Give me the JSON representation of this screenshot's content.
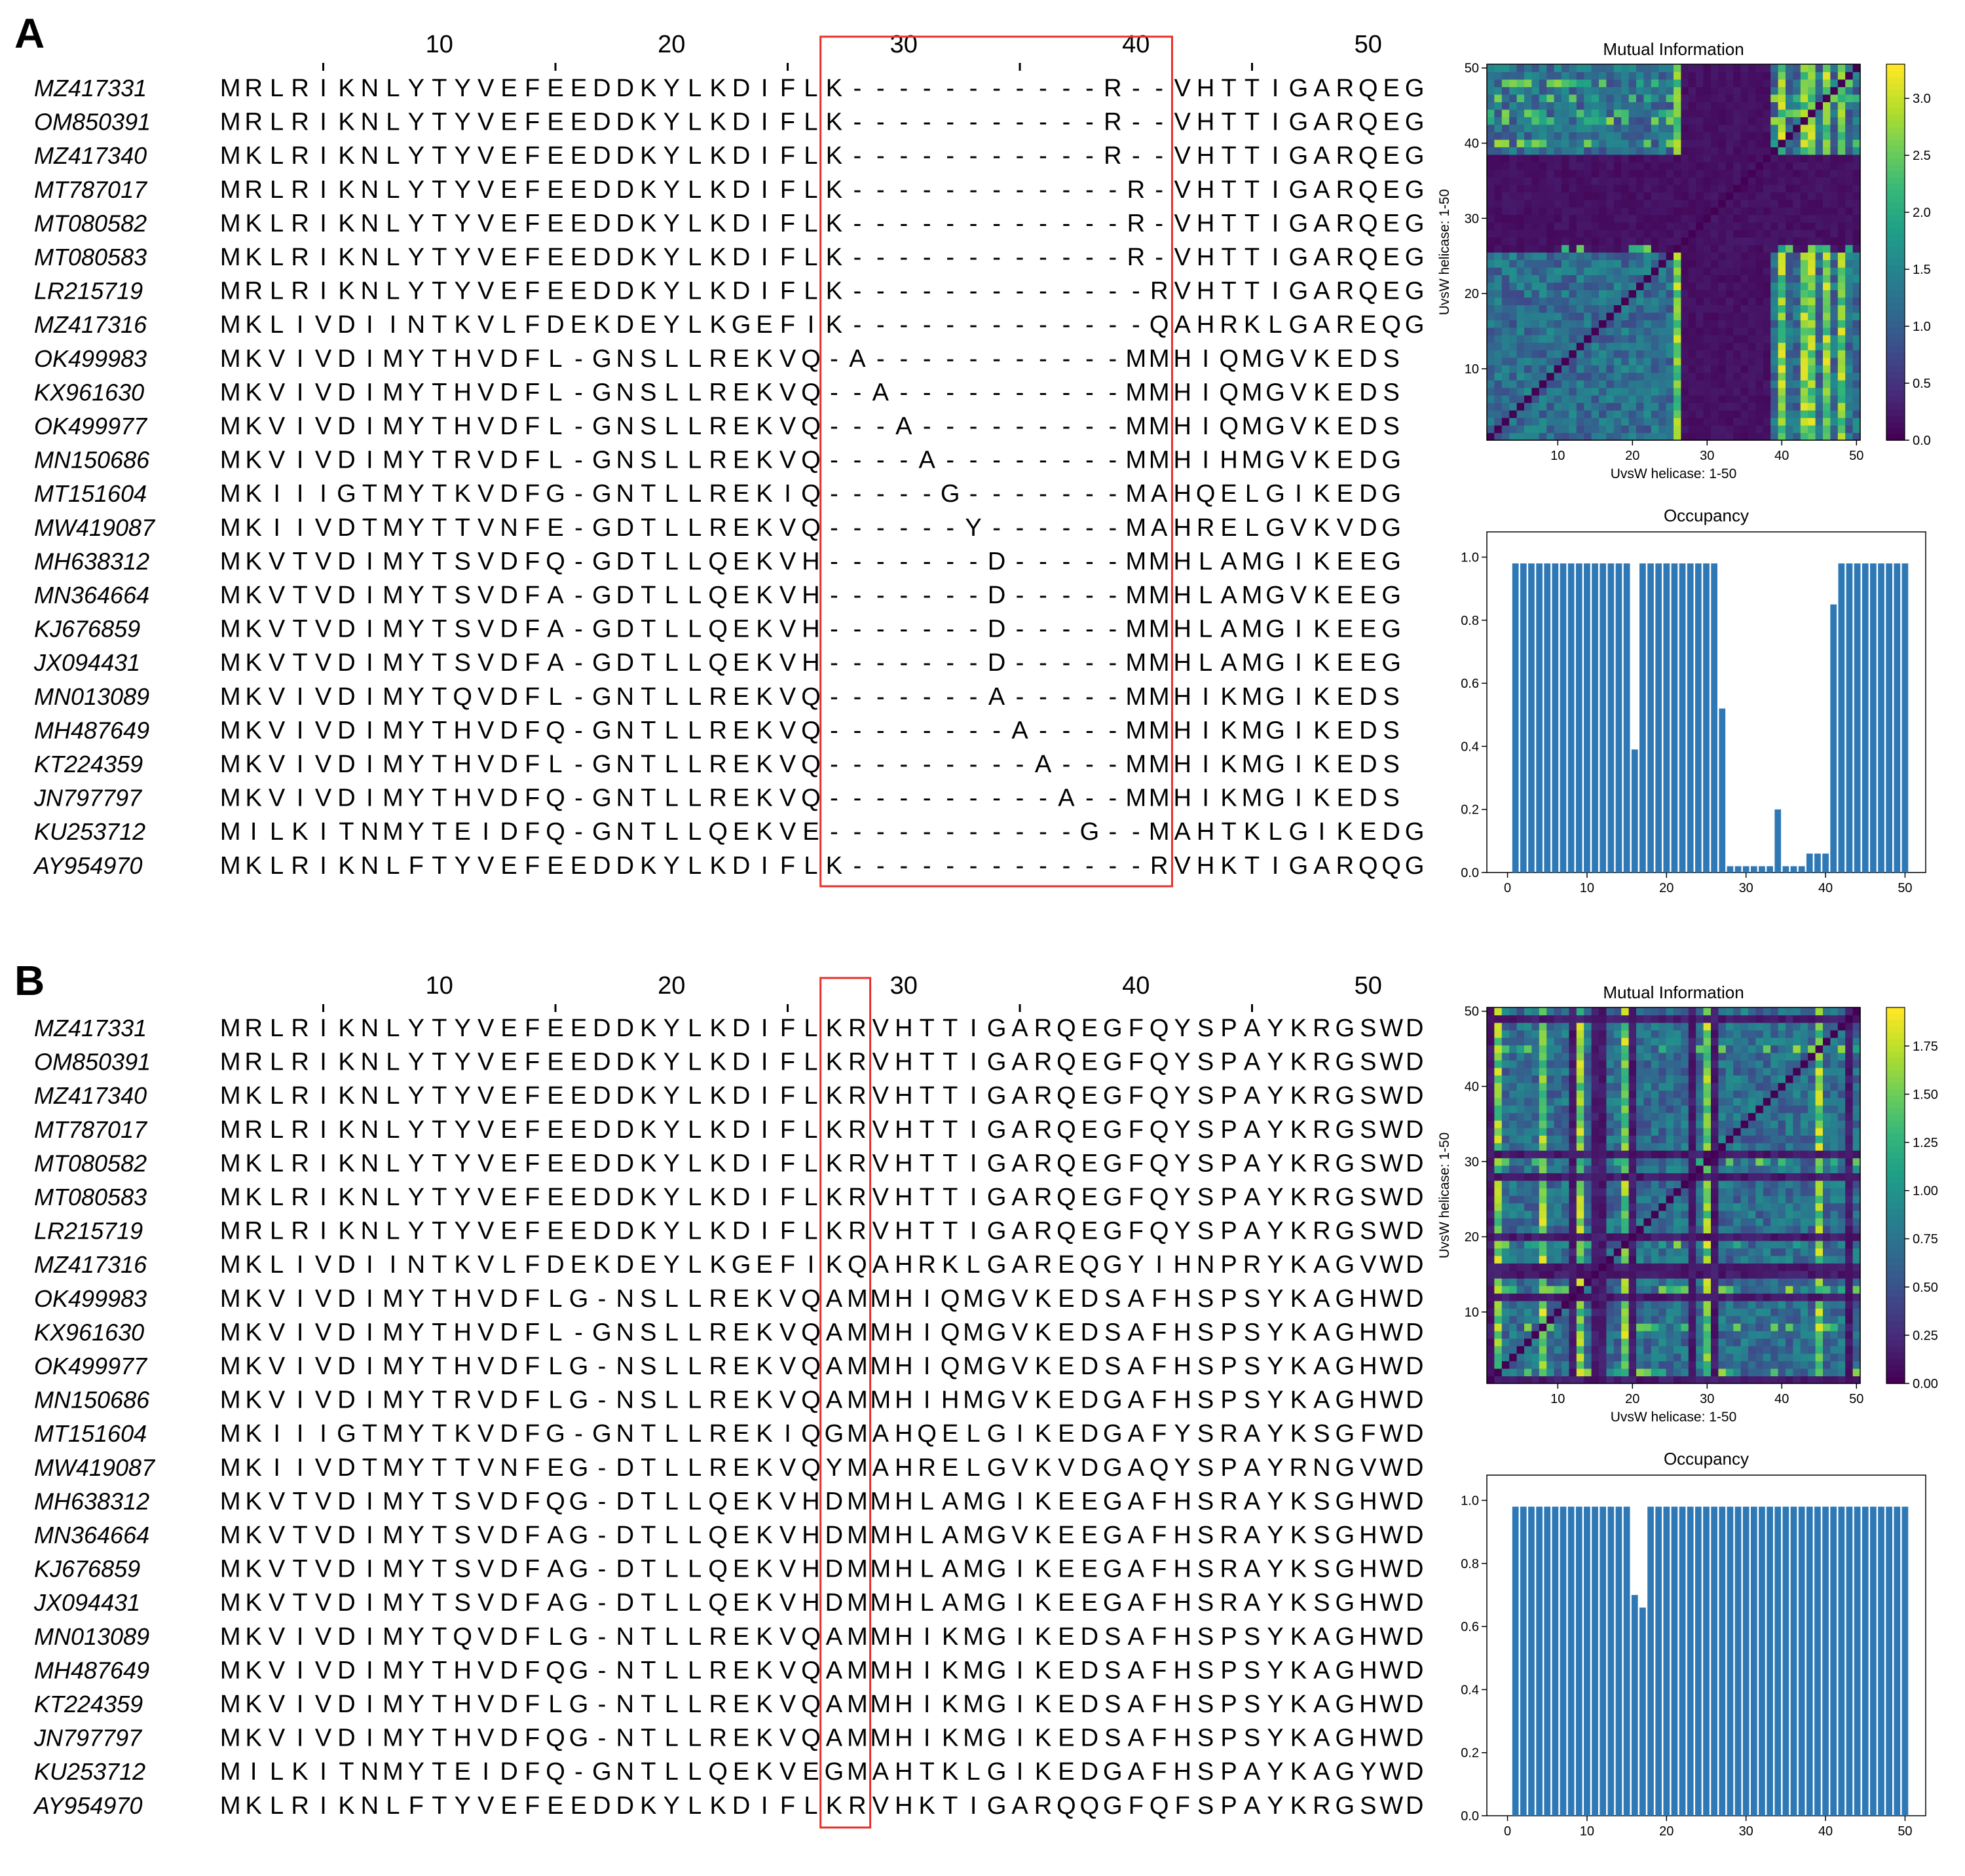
{
  "panels": [
    {
      "letter": "A",
      "alignment": {
        "ruler_labels": [
          "10",
          "20",
          "30",
          "40",
          "50"
        ],
        "ruler_positions": [
          10,
          20,
          30,
          40,
          50
        ],
        "highlight_columns": [
          27,
          41
        ],
        "rows": [
          {
            "name": "MZ417331",
            "seq": "MRLRIKNLYTYVEFEEDDKYLKDIFLK-----------R--VHTTIGARQEG"
          },
          {
            "name": "OM850391",
            "seq": "MRLRIKNLYTYVEFEEDDKYLKDIFLK-----------R--VHTTIGARQEG"
          },
          {
            "name": "MZ417340",
            "seq": "MKLRIKNLYTYVEFEEDDKYLKDIFLK-----------R--VHTTIGARQEG"
          },
          {
            "name": "MT787017",
            "seq": "MRLRIKNLYTYVEFEEDDKYLKDIFLK------------R-VHTTIGARQEG"
          },
          {
            "name": "MT080582",
            "seq": "MKLRIKNLYTYVEFEEDDKYLKDIFLK------------R-VHTTIGARQEG"
          },
          {
            "name": "MT080583",
            "seq": "MKLRIKNLYTYVEFEEDDKYLKDIFLK------------R-VHTTIGARQEG"
          },
          {
            "name": "LR215719",
            "seq": "MRLRIKNLYTYVEFEEDDKYLKDIFLK-------------RVHTTIGARQEG"
          },
          {
            "name": "MZ417316",
            "seq": "MKLIVDIINTKVLFDEKDEYLKGEFIK-------------QAHRKLGAREQG"
          },
          {
            "name": "OK499983",
            "seq": "MKVIVDIMYTHVDFL-GNSLLREKVQ-A-----------MMHIQMGVKEDS"
          },
          {
            "name": "KX961630",
            "seq": "MKVIVDIMYTHVDFL-GNSLLREKVQ--A----------MMHIQMGVKEDS"
          },
          {
            "name": "OK499977",
            "seq": "MKVIVDIMYTHVDFL-GNSLLREKVQ---A---------MMHIQMGVKEDS"
          },
          {
            "name": "MN150686",
            "seq": "MKVIVDIMYTRVDFL-GNSLLREKVQ----A--------MMHIHMGVKEDG"
          },
          {
            "name": "MT151604",
            "seq": "MKIIIGTMYTKVDFG-GNTLLREKIQ-----G-------MAHQELGIKEDG"
          },
          {
            "name": "MW419087",
            "seq": "MKIIVDTMYTTVNFE-GDTLLREKVQ------Y------MAHRELGVKVDG"
          },
          {
            "name": "MH638312",
            "seq": "MKVTVDIMYTSVDFQ-GDTLLQEKVH-------D-----MMHLAMGIKEEG"
          },
          {
            "name": "MN364664",
            "seq": "MKVTVDIMYTSVDFA-GDTLLQEKVH-------D-----MMHLAMGVKEEG"
          },
          {
            "name": "KJ676859",
            "seq": "MKVTVDIMYTSVDFA-GDTLLQEKVH-------D-----MMHLAMGIKEEG"
          },
          {
            "name": "JX094431",
            "seq": "MKVTVDIMYTSVDFA-GDTLLQEKVH-------D-----MMHLAMGIKEEG"
          },
          {
            "name": "MN013089",
            "seq": "MKVIVDIMYTQVDFL-GNTLLREKVQ-------A-----MMHIKMGIKEDS"
          },
          {
            "name": "MH487649",
            "seq": "MKVIVDIMYTHVDFQ-GNTLLREKVQ--------A----MMHIKMGIKEDS"
          },
          {
            "name": "KT224359",
            "seq": "MKVIVDIMYTHVDFL-GNTLLREKVQ---------A---MMHIKMGIKEDS"
          },
          {
            "name": "JN797797",
            "seq": "MKVIVDIMYTHVDFQ-GNTLLREKVQ----------A--MMHIKMGIKEDS"
          },
          {
            "name": "KU253712",
            "seq": "MILKITNMYTEIDFQ-GNTLLQEKVE-----------G--MAHTKLGIKEDG"
          },
          {
            "name": "AY954970",
            "seq": "MKLRIKNLFTYVEFEEDDKYLKDIFLK-------------RVHKTIGARQQG"
          }
        ]
      },
      "mi_plot": {
        "title": "Mutual Information",
        "xlabel": "UvsW helicase: 1-50",
        "ylabel": "UvsW helicase: 1-50",
        "xticks": [
          "10",
          "20",
          "30",
          "40",
          "50"
        ],
        "yticks": [
          "10",
          "20",
          "30",
          "40",
          "50"
        ],
        "colorbar_ticks": [
          "0.0",
          "0.5",
          "1.0",
          "1.5",
          "2.0",
          "2.5",
          "3.0"
        ],
        "colorbar_max": 3.3
      },
      "occupancy_plot": {
        "title": "Occupancy",
        "xticks": [
          "0",
          "10",
          "20",
          "30",
          "40",
          "50"
        ],
        "yticks": [
          "0.0",
          "0.2",
          "0.4",
          "0.6",
          "0.8",
          "1.0"
        ]
      }
    },
    {
      "letter": "B",
      "alignment": {
        "ruler_labels": [
          "10",
          "20",
          "30",
          "40",
          "50"
        ],
        "ruler_positions": [
          10,
          20,
          30,
          40,
          50
        ],
        "highlight_columns": [
          27,
          28
        ],
        "rows": [
          {
            "name": "MZ417331",
            "seq": "MRLRIKNLYTYVEFEEDDKYLKDIFLKRVHTTIGARQEGFQYSPAYKRGSWD"
          },
          {
            "name": "OM850391",
            "seq": "MRLRIKNLYTYVEFEEDDKYLKDIFLKRVHTTIGARQEGFQYSPAYKRGSWD"
          },
          {
            "name": "MZ417340",
            "seq": "MKLRIKNLYTYVEFEEDDKYLKDIFLKRVHTTIGARQEGFQYSPAYKRGSWD"
          },
          {
            "name": "MT787017",
            "seq": "MRLRIKNLYTYVEFEEDDKYLKDIFLKRVHTTIGARQEGFQYSPAYKRGSWD"
          },
          {
            "name": "MT080582",
            "seq": "MKLRIKNLYTYVEFEEDDKYLKDIFLKRVHTTIGARQEGFQYSPAYKRGSWD"
          },
          {
            "name": "MT080583",
            "seq": "MKLRIKNLYTYVEFEEDDKYLKDIFLKRVHTTIGARQEGFQYSPAYKRGSWD"
          },
          {
            "name": "LR215719",
            "seq": "MRLRIKNLYTYVEFEEDDKYLKDIFLKRVHTTIGARQEGFQYSPAYKRGSWD"
          },
          {
            "name": "MZ417316",
            "seq": "MKLIVDIINTKVLFDEKDEYLKGEFIKQAHRKLGAREQGYIHNPRYKAGVWD"
          },
          {
            "name": "OK499983",
            "seq": "MKVIVDIMYTHVDFLG-NSLLREKVQAMMHIQMGVKEDSAFHSPSYKAGHWD"
          },
          {
            "name": "KX961630",
            "seq": "MKVIVDIMYTHVDFL-GNSLLREKVQAMMHIQMGVKEDSAFHSPSYKAGHWD"
          },
          {
            "name": "OK499977",
            "seq": "MKVIVDIMYTHVDFLG-NSLLREKVQAMMHIQMGVKEDSAFHSPSYKAGHWD"
          },
          {
            "name": "MN150686",
            "seq": "MKVIVDIMYTRVDFLG-NSLLREKVQAMMHIHMGVKEDGAFHSPSYKAGHWD"
          },
          {
            "name": "MT151604",
            "seq": "MKIIIGTMYTKVDFG-GNTLLREKIQGMAHQELGIKEDGAFYSRAYKSGFWD"
          },
          {
            "name": "MW419087",
            "seq": "MKIIVDTMYTTVNFEG-DTLLREKVQYMAHRELGVKVDGAQYSPAYRNGVWD"
          },
          {
            "name": "MH638312",
            "seq": "MKVTVDIMYTSVDFQG-DTLLQEKVHDMMHLAMGIKEEGAFHSRAYKSGHWD"
          },
          {
            "name": "MN364664",
            "seq": "MKVTVDIMYTSVDFAG-DTLLQEKVHDMMHLAMGVKEEGAFHSRAYKSGHWD"
          },
          {
            "name": "KJ676859",
            "seq": "MKVTVDIMYTSVDFAG-DTLLQEKVHDMMHLAMGIKEEGAFHSRAYKSGHWD"
          },
          {
            "name": "JX094431",
            "seq": "MKVTVDIMYTSVDFAG-DTLLQEKVHDMMHLAMGIKEEGAFHSRAYKSGHWD"
          },
          {
            "name": "MN013089",
            "seq": "MKVIVDIMYTQVDFLG-NTLLREKVQAMMHIKMGIKEDSAFHSPSYKAGHWD"
          },
          {
            "name": "MH487649",
            "seq": "MKVIVDIMYTHVDFQG-NTLLREKVQAMMHIKMGIKEDSAFHSPSYKAGHWD"
          },
          {
            "name": "KT224359",
            "seq": "MKVIVDIMYTHVDFLG-NTLLREKVQAMMHIKMGIKEDSAFHSPSYKAGHWD"
          },
          {
            "name": "JN797797",
            "seq": "MKVIVDIMYTHVDFQG-NTLLREKVQAMMHIKMGIKEDSAFHSPSYKAGHWD"
          },
          {
            "name": "KU253712",
            "seq": "MILKITNMYTEIDFQ-GNTLLQEKVEGMAHTKLGIKEDGAFHSPAYKAGYWD"
          },
          {
            "name": "AY954970",
            "seq": "MKLRIKNLFTYVEFEEDDKYLKDIFLKRVHKTIGARQQGFQFSPAYKRGSWD"
          }
        ]
      },
      "mi_plot": {
        "title": "Mutual Information",
        "xlabel": "UvsW helicase: 1-50",
        "ylabel": "UvsW helicase: 1-50",
        "xticks": [
          "10",
          "20",
          "30",
          "40",
          "50"
        ],
        "yticks": [
          "10",
          "20",
          "30",
          "40",
          "50"
        ],
        "colorbar_ticks": [
          "0.00",
          "0.25",
          "0.50",
          "0.75",
          "1.00",
          "1.25",
          "1.50",
          "1.75"
        ],
        "colorbar_max": 1.95
      },
      "occupancy_plot": {
        "title": "Occupancy",
        "xticks": [
          "0",
          "10",
          "20",
          "30",
          "40",
          "50"
        ],
        "yticks": [
          "0.0",
          "0.2",
          "0.4",
          "0.6",
          "0.8",
          "1.0"
        ]
      }
    }
  ],
  "chart_data": [
    {
      "type": "heatmap",
      "title": "Mutual Information",
      "xlabel": "UvsW helicase: 1-50",
      "ylabel": "UvsW helicase: 1-50",
      "xlim": [
        1,
        50
      ],
      "ylim": [
        1,
        50
      ],
      "colorbar_range": [
        0.0,
        3.3
      ],
      "colormap": "viridis",
      "low_information_columns": [
        26,
        27,
        28,
        29,
        30,
        31,
        32,
        33,
        34,
        35,
        36,
        37,
        38
      ],
      "high_value_columns": [
        26,
        40,
        43,
        44,
        46,
        48
      ]
    },
    {
      "type": "bar",
      "title": "Occupancy",
      "xlim": [
        0,
        51
      ],
      "ylim": [
        0,
        1.0
      ],
      "x": [
        1,
        2,
        3,
        4,
        5,
        6,
        7,
        8,
        9,
        10,
        11,
        12,
        13,
        14,
        15,
        16,
        17,
        18,
        19,
        20,
        21,
        22,
        23,
        24,
        25,
        26,
        27,
        28,
        29,
        30,
        31,
        32,
        33,
        34,
        35,
        36,
        37,
        38,
        39,
        40,
        41,
        42,
        43,
        44,
        45,
        46,
        47,
        48,
        49,
        50
      ],
      "values": [
        0.98,
        0.98,
        0.98,
        0.98,
        0.98,
        0.98,
        0.98,
        0.98,
        0.98,
        0.98,
        0.98,
        0.98,
        0.98,
        0.98,
        0.98,
        0.39,
        0.98,
        0.98,
        0.98,
        0.98,
        0.98,
        0.98,
        0.98,
        0.98,
        0.98,
        0.98,
        0.52,
        0.02,
        0.02,
        0.02,
        0.02,
        0.02,
        0.02,
        0.2,
        0.02,
        0.02,
        0.02,
        0.06,
        0.06,
        0.06,
        0.85,
        0.98,
        0.98,
        0.98,
        0.98,
        0.98,
        0.98,
        0.98,
        0.98,
        0.98
      ],
      "color": "#2e78b5"
    },
    {
      "type": "heatmap",
      "title": "Mutual Information",
      "xlabel": "UvsW helicase: 1-50",
      "ylabel": "UvsW helicase: 1-50",
      "xlim": [
        1,
        50
      ],
      "ylim": [
        1,
        50
      ],
      "colorbar_range": [
        0.0,
        1.95
      ],
      "colormap": "viridis",
      "low_information_columns": [
        1,
        12,
        15,
        16,
        20,
        28,
        31,
        49
      ],
      "high_value_columns": [
        2,
        8,
        13,
        19,
        30,
        45
      ]
    },
    {
      "type": "bar",
      "title": "Occupancy",
      "xlim": [
        0,
        51
      ],
      "ylim": [
        0,
        1.0
      ],
      "x": [
        1,
        2,
        3,
        4,
        5,
        6,
        7,
        8,
        9,
        10,
        11,
        12,
        13,
        14,
        15,
        16,
        17,
        18,
        19,
        20,
        21,
        22,
        23,
        24,
        25,
        26,
        27,
        28,
        29,
        30,
        31,
        32,
        33,
        34,
        35,
        36,
        37,
        38,
        39,
        40,
        41,
        42,
        43,
        44,
        45,
        46,
        47,
        48,
        49,
        50
      ],
      "values": [
        0.98,
        0.98,
        0.98,
        0.98,
        0.98,
        0.98,
        0.98,
        0.98,
        0.98,
        0.98,
        0.98,
        0.98,
        0.98,
        0.98,
        0.98,
        0.7,
        0.66,
        0.98,
        0.98,
        0.98,
        0.98,
        0.98,
        0.98,
        0.98,
        0.98,
        0.98,
        0.98,
        0.98,
        0.98,
        0.98,
        0.98,
        0.98,
        0.98,
        0.98,
        0.98,
        0.98,
        0.98,
        0.98,
        0.98,
        0.98,
        0.98,
        0.98,
        0.98,
        0.98,
        0.98,
        0.98,
        0.98,
        0.98,
        0.98,
        0.98
      ],
      "color": "#2e78b5"
    }
  ],
  "colors": {
    "highlight_box": "#e8302a",
    "bar": "#2e78b5",
    "viridis": [
      "#440154",
      "#482878",
      "#3e4989",
      "#31688e",
      "#26828e",
      "#1f9e89",
      "#35b779",
      "#6ece58",
      "#b5de2b",
      "#fde725"
    ]
  }
}
